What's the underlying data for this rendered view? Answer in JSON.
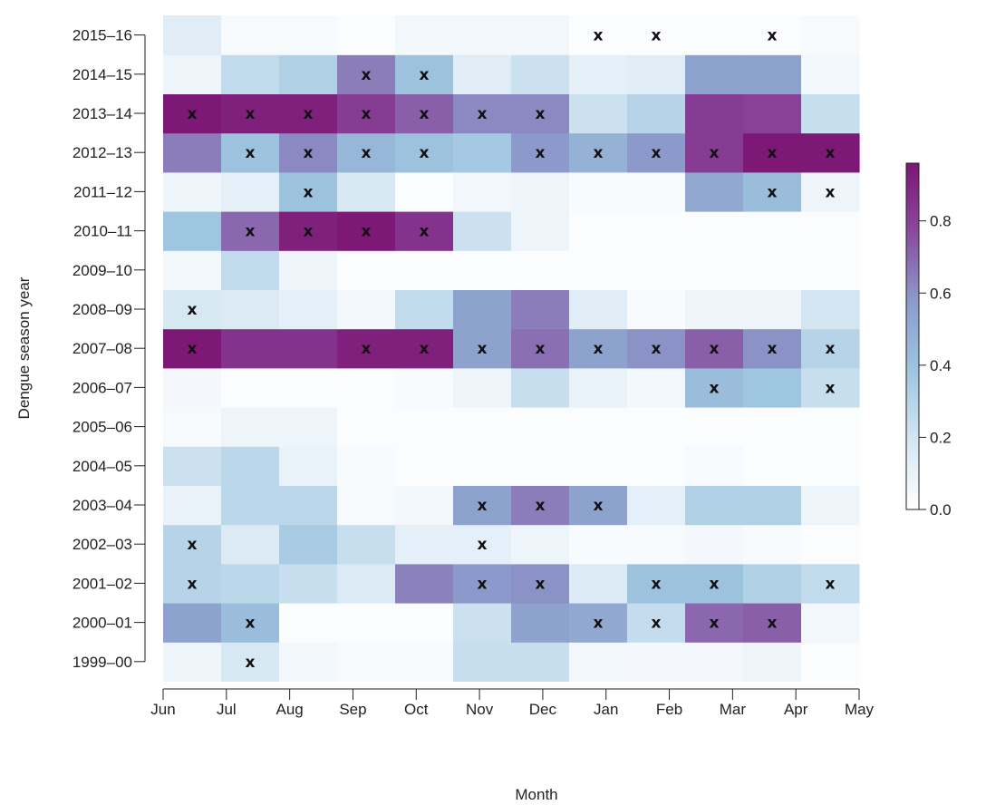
{
  "chart_data": {
    "type": "heatmap",
    "title": "",
    "xlabel": "Month",
    "ylabel": "Dengue season year",
    "x_tick_labels": [
      "Jun",
      "Jul",
      "Aug",
      "Sep",
      "Oct",
      "Nov",
      "Dec",
      "Jan",
      "Feb",
      "Mar",
      "Apr",
      "May"
    ],
    "y_categories": [
      "1999–00",
      "2000–01",
      "2001–02",
      "2002–03",
      "2003–04",
      "2004–05",
      "2005–06",
      "2006–07",
      "2007–08",
      "2008–09",
      "2009–10",
      "2010–11",
      "2011–12",
      "2012–13",
      "2013–14",
      "2014–15",
      "2015–16"
    ],
    "columns": 12,
    "values": [
      [
        0.08,
        0.18,
        0.06,
        0.04,
        0.04,
        0.24,
        0.24,
        0.06,
        0.05,
        0.05,
        0.08,
        0.02
      ],
      [
        0.55,
        0.42,
        0.02,
        0.02,
        0.02,
        0.22,
        0.55,
        0.52,
        0.25,
        0.7,
        0.72,
        0.06
      ],
      [
        0.3,
        0.28,
        0.24,
        0.16,
        0.64,
        0.58,
        0.6,
        0.16,
        0.4,
        0.4,
        0.32,
        0.26
      ],
      [
        0.3,
        0.16,
        0.35,
        0.24,
        0.12,
        0.12,
        0.08,
        0.03,
        0.03,
        0.05,
        0.03,
        0.02
      ],
      [
        0.1,
        0.28,
        0.28,
        0.04,
        0.06,
        0.55,
        0.65,
        0.55,
        0.12,
        0.32,
        0.32,
        0.08
      ],
      [
        0.22,
        0.28,
        0.1,
        0.03,
        0.02,
        0.02,
        0.02,
        0.02,
        0.02,
        0.04,
        0.02,
        0.02
      ],
      [
        0.04,
        0.08,
        0.08,
        0.02,
        0.02,
        0.02,
        0.02,
        0.02,
        0.02,
        0.02,
        0.02,
        0.02
      ],
      [
        0.05,
        0.02,
        0.02,
        0.02,
        0.04,
        0.08,
        0.24,
        0.1,
        0.06,
        0.42,
        0.38,
        0.24
      ],
      [
        0.95,
        0.85,
        0.85,
        0.92,
        0.92,
        0.55,
        0.68,
        0.55,
        0.6,
        0.72,
        0.6,
        0.3
      ],
      [
        0.18,
        0.16,
        0.12,
        0.06,
        0.26,
        0.55,
        0.65,
        0.14,
        0.04,
        0.08,
        0.08,
        0.2
      ],
      [
        0.06,
        0.26,
        0.08,
        0.02,
        0.02,
        0.02,
        0.02,
        0.02,
        0.02,
        0.02,
        0.02,
        0.02
      ],
      [
        0.38,
        0.7,
        0.92,
        0.95,
        0.85,
        0.22,
        0.08,
        0.02,
        0.02,
        0.02,
        0.02,
        0.02
      ],
      [
        0.08,
        0.12,
        0.4,
        0.18,
        0.02,
        0.06,
        0.08,
        0.04,
        0.04,
        0.52,
        0.42,
        0.08
      ],
      [
        0.65,
        0.4,
        0.62,
        0.45,
        0.4,
        0.36,
        0.58,
        0.48,
        0.58,
        0.82,
        0.95,
        0.95
      ],
      [
        0.95,
        0.92,
        0.92,
        0.82,
        0.72,
        0.62,
        0.62,
        0.22,
        0.3,
        0.82,
        0.8,
        0.24
      ],
      [
        0.08,
        0.26,
        0.32,
        0.65,
        0.4,
        0.14,
        0.22,
        0.12,
        0.14,
        0.55,
        0.55,
        0.06
      ],
      [
        0.14,
        0.04,
        0.04,
        0.02,
        0.06,
        0.06,
        0.06,
        0.02,
        0.02,
        0.02,
        0.02,
        0.04
      ]
    ],
    "marked_cells": [
      [
        0,
        1,
        0,
        0,
        0,
        0,
        0,
        0,
        0,
        0,
        0,
        0
      ],
      [
        0,
        1,
        0,
        0,
        0,
        0,
        0,
        1,
        1,
        1,
        1,
        0
      ],
      [
        1,
        0,
        0,
        0,
        0,
        1,
        1,
        0,
        1,
        1,
        0,
        1
      ],
      [
        1,
        0,
        0,
        0,
        0,
        1,
        0,
        0,
        0,
        0,
        0,
        0
      ],
      [
        0,
        0,
        0,
        0,
        0,
        1,
        1,
        1,
        0,
        0,
        0,
        0
      ],
      [
        0,
        0,
        0,
        0,
        0,
        0,
        0,
        0,
        0,
        0,
        0,
        0
      ],
      [
        0,
        0,
        0,
        0,
        0,
        0,
        0,
        0,
        0,
        0,
        0,
        0
      ],
      [
        0,
        0,
        0,
        0,
        0,
        0,
        0,
        0,
        0,
        1,
        0,
        1
      ],
      [
        1,
        0,
        0,
        1,
        1,
        1,
        1,
        1,
        1,
        1,
        1,
        1
      ],
      [
        1,
        0,
        0,
        0,
        0,
        0,
        0,
        0,
        0,
        0,
        0,
        0
      ],
      [
        0,
        0,
        0,
        0,
        0,
        0,
        0,
        0,
        0,
        0,
        0,
        0
      ],
      [
        0,
        1,
        1,
        1,
        1,
        0,
        0,
        0,
        0,
        0,
        0,
        0
      ],
      [
        0,
        0,
        1,
        0,
        0,
        0,
        0,
        0,
        0,
        0,
        1,
        1
      ],
      [
        0,
        1,
        1,
        1,
        1,
        0,
        1,
        1,
        1,
        1,
        1,
        1
      ],
      [
        1,
        1,
        1,
        1,
        1,
        1,
        1,
        0,
        0,
        0,
        0,
        0
      ],
      [
        0,
        0,
        0,
        1,
        1,
        0,
        0,
        0,
        0,
        0,
        0,
        0
      ],
      [
        0,
        0,
        0,
        0,
        0,
        0,
        0,
        1,
        1,
        0,
        1,
        0
      ]
    ],
    "marker_symbol": "x",
    "colorbar": {
      "min": 0,
      "max": 0.96,
      "tick_values": [
        0.0,
        0.2,
        0.4,
        0.6,
        0.8
      ],
      "tick_labels": [
        "0.0",
        "0.2",
        "0.4",
        "0.6",
        "0.8"
      ],
      "colors": [
        "#ffffff",
        "#d4e6f2",
        "#9ec5e0",
        "#8b9ccb",
        "#8a4a9e",
        "#7d1574"
      ]
    },
    "grid": false,
    "legend": "colorbar-right"
  }
}
